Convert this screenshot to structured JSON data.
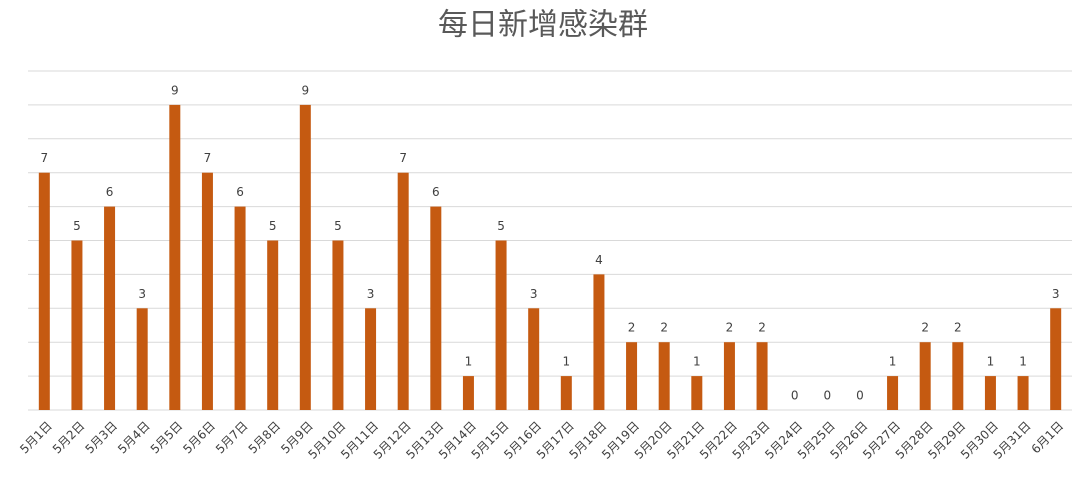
{
  "chart_data": {
    "type": "bar",
    "title": "每日新增感染群",
    "categories": [
      "5月1日",
      "5月2日",
      "5月3日",
      "5月4日",
      "5月5日",
      "5月6日",
      "5月7日",
      "5月8日",
      "5月9日",
      "5月10日",
      "5月11日",
      "5月12日",
      "5月13日",
      "5月14日",
      "5月15日",
      "5月16日",
      "5月17日",
      "5月18日",
      "5月19日",
      "5月20日",
      "5月21日",
      "5月22日",
      "5月23日",
      "5月24日",
      "5月25日",
      "5月26日",
      "5月27日",
      "5月28日",
      "5月29日",
      "5月30日",
      "5月31日",
      "6月1日"
    ],
    "values": [
      7,
      5,
      6,
      3,
      9,
      7,
      6,
      5,
      9,
      5,
      3,
      7,
      6,
      1,
      5,
      3,
      1,
      4,
      2,
      2,
      1,
      2,
      2,
      0,
      0,
      0,
      1,
      2,
      2,
      1,
      1,
      3
    ],
    "color": "#c55a11",
    "ylim": [
      0,
      10
    ],
    "yticks": [
      0,
      1,
      2,
      3,
      4,
      5,
      6,
      7,
      8,
      9,
      10
    ],
    "grid": true
  }
}
